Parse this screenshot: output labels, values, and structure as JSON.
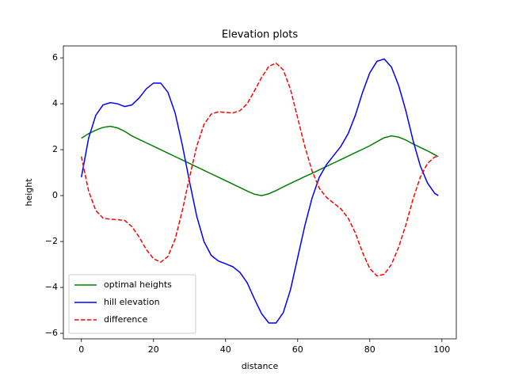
{
  "chart_data": {
    "type": "line",
    "title": "Elevation plots",
    "xlabel": "distance",
    "ylabel": "height",
    "x": [
      0,
      2,
      4,
      6,
      8,
      10,
      12,
      14,
      16,
      18,
      20,
      22,
      24,
      26,
      28,
      30,
      32,
      34,
      36,
      38,
      40,
      42,
      44,
      46,
      48,
      50,
      52,
      54,
      56,
      58,
      60,
      62,
      64,
      66,
      68,
      70,
      72,
      74,
      76,
      78,
      80,
      82,
      84,
      86,
      88,
      90,
      92,
      94,
      96,
      98,
      99
    ],
    "series": [
      {
        "name": "optimal heights",
        "color": "#008000",
        "linestyle": "solid",
        "values": [
          2.5,
          2.7,
          2.85,
          2.97,
          3.02,
          2.95,
          2.8,
          2.6,
          2.45,
          2.3,
          2.15,
          2.0,
          1.85,
          1.7,
          1.55,
          1.4,
          1.25,
          1.1,
          0.95,
          0.8,
          0.65,
          0.5,
          0.35,
          0.2,
          0.06,
          0.0,
          0.08,
          0.22,
          0.38,
          0.53,
          0.68,
          0.83,
          0.97,
          1.12,
          1.27,
          1.42,
          1.57,
          1.72,
          1.87,
          2.02,
          2.17,
          2.35,
          2.52,
          2.6,
          2.55,
          2.42,
          2.25,
          2.1,
          1.95,
          1.78,
          1.7
        ]
      },
      {
        "name": "hill elevation",
        "color": "#0000ff",
        "linestyle": "solid",
        "values": [
          0.8,
          2.5,
          3.5,
          3.95,
          4.05,
          4.0,
          3.88,
          3.95,
          4.25,
          4.65,
          4.9,
          4.9,
          4.5,
          3.6,
          2.2,
          0.6,
          -0.9,
          -2.0,
          -2.6,
          -2.85,
          -2.97,
          -3.1,
          -3.35,
          -3.8,
          -4.5,
          -5.15,
          -5.55,
          -5.55,
          -5.1,
          -4.1,
          -2.7,
          -1.3,
          -0.1,
          0.8,
          1.35,
          1.75,
          2.15,
          2.7,
          3.5,
          4.5,
          5.35,
          5.85,
          5.95,
          5.6,
          4.8,
          3.7,
          2.4,
          1.3,
          0.55,
          0.1,
          0.0
        ]
      },
      {
        "name": "difference",
        "color": "#ff0000",
        "linestyle": "dashed",
        "values": [
          1.7,
          0.2,
          -0.65,
          -0.98,
          -1.03,
          -1.05,
          -1.08,
          -1.35,
          -1.8,
          -2.35,
          -2.75,
          -2.9,
          -2.65,
          -1.9,
          -0.65,
          0.8,
          2.15,
          3.1,
          3.55,
          3.65,
          3.62,
          3.6,
          3.7,
          4.0,
          4.56,
          5.15,
          5.63,
          5.77,
          5.48,
          4.63,
          3.38,
          2.13,
          1.07,
          0.32,
          -0.08,
          -0.33,
          -0.58,
          -0.98,
          -1.63,
          -2.48,
          -3.18,
          -3.5,
          -3.43,
          -3.0,
          -2.25,
          -1.28,
          -0.15,
          0.8,
          1.4,
          1.68,
          1.7
        ]
      }
    ],
    "xlim": [
      -5,
      104
    ],
    "ylim": [
      -6.24,
      6.52
    ],
    "xticks": [
      0,
      20,
      40,
      60,
      80,
      100
    ],
    "yticks": [
      {
        "value": -6,
        "label": "−6"
      },
      {
        "value": -4,
        "label": "−4"
      },
      {
        "value": -2,
        "label": "−2"
      },
      0,
      2,
      4,
      6
    ],
    "legend": "lower left"
  }
}
